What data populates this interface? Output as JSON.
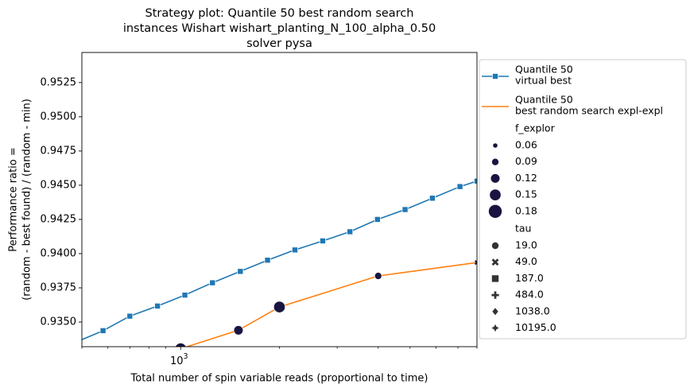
{
  "chart_data": {
    "type": "line",
    "title": [
      "Strategy plot: Quantile 50 best random search",
      "instances Wishart wishart_planting_N_100_alpha_0.50",
      "solver pysa"
    ],
    "xlabel": "Total number of spin variable reads (proportional to time)",
    "ylabel": [
      "Performance ratio =",
      "(random - best found) / (random - min)"
    ],
    "xscale": "log",
    "xlim": [
      500,
      8000
    ],
    "ylim": [
      0.9332,
      0.9547
    ],
    "x_tick_labels": [
      {
        "value": 1000,
        "base": "10",
        "exp": "3"
      }
    ],
    "y_ticks": [
      0.935,
      0.9375,
      0.94,
      0.9425,
      0.945,
      0.9475,
      0.95,
      0.9525
    ],
    "y_tick_labels": [
      "0.9350",
      "0.9375",
      "0.9400",
      "0.9425",
      "0.9450",
      "0.9475",
      "0.9500",
      "0.9525"
    ],
    "grid": false,
    "legend_position": "right, outside the axes",
    "series": [
      {
        "name": "Quantile 50\n virtual best",
        "color": "#1f77b4",
        "marker": "square",
        "x": [
          450,
          580,
          700,
          850,
          1030,
          1250,
          1520,
          1840,
          2230,
          2710,
          3280,
          3980,
          4830,
          5850,
          7100,
          8000
        ],
        "y": [
          0.93325,
          0.93437,
          0.93543,
          0.93617,
          0.93697,
          0.93787,
          0.9387,
          0.93952,
          0.94027,
          0.94093,
          0.9416,
          0.9425,
          0.94322,
          0.94405,
          0.9449,
          0.9453
        ]
      },
      {
        "name": "Quantile 50\n best random search expl-expl",
        "color": "#ff7f0e",
        "x": [
          1000,
          1500,
          2000,
          4000,
          8000
        ],
        "y": [
          0.93305,
          0.9344,
          0.9361,
          0.93837,
          0.93935
        ]
      }
    ],
    "scatter_points": [
      {
        "x": 1000,
        "y": 0.93305,
        "f_explor": 0.15,
        "tau": "19.0"
      },
      {
        "x": 1500,
        "y": 0.9344,
        "f_explor": 0.12,
        "tau": "19.0"
      },
      {
        "x": 2000,
        "y": 0.9361,
        "f_explor": 0.15,
        "tau": "19.0"
      },
      {
        "x": 4000,
        "y": 0.93837,
        "f_explor": 0.09,
        "tau": "19.0"
      },
      {
        "x": 8000,
        "y": 0.93935,
        "f_explor": 0.06,
        "tau": "49.0"
      }
    ],
    "point_color": "#1a1440",
    "legend": {
      "lines": [
        {
          "label": [
            "Quantile 50",
            " virtual best"
          ],
          "color": "#1f77b4",
          "marker": "square"
        },
        {
          "label": [
            "Quantile 50",
            " best random search expl-expl"
          ],
          "color": "#ff7f0e",
          "marker": "none"
        }
      ],
      "size_title": "f_explor",
      "sizes": [
        {
          "label": "0.06",
          "value": 0.06
        },
        {
          "label": "0.09",
          "value": 0.09
        },
        {
          "label": "0.12",
          "value": 0.12
        },
        {
          "label": "0.15",
          "value": 0.15
        },
        {
          "label": "0.18",
          "value": 0.18
        }
      ],
      "marker_title": "tau",
      "markers": [
        {
          "label": "19.0",
          "marker": "circle"
        },
        {
          "label": "49.0",
          "marker": "x"
        },
        {
          "label": "187.0",
          "marker": "square"
        },
        {
          "label": "484.0",
          "marker": "plus"
        },
        {
          "label": "1038.0",
          "marker": "diamond"
        },
        {
          "label": "10195.0",
          "marker": "star"
        }
      ]
    }
  }
}
